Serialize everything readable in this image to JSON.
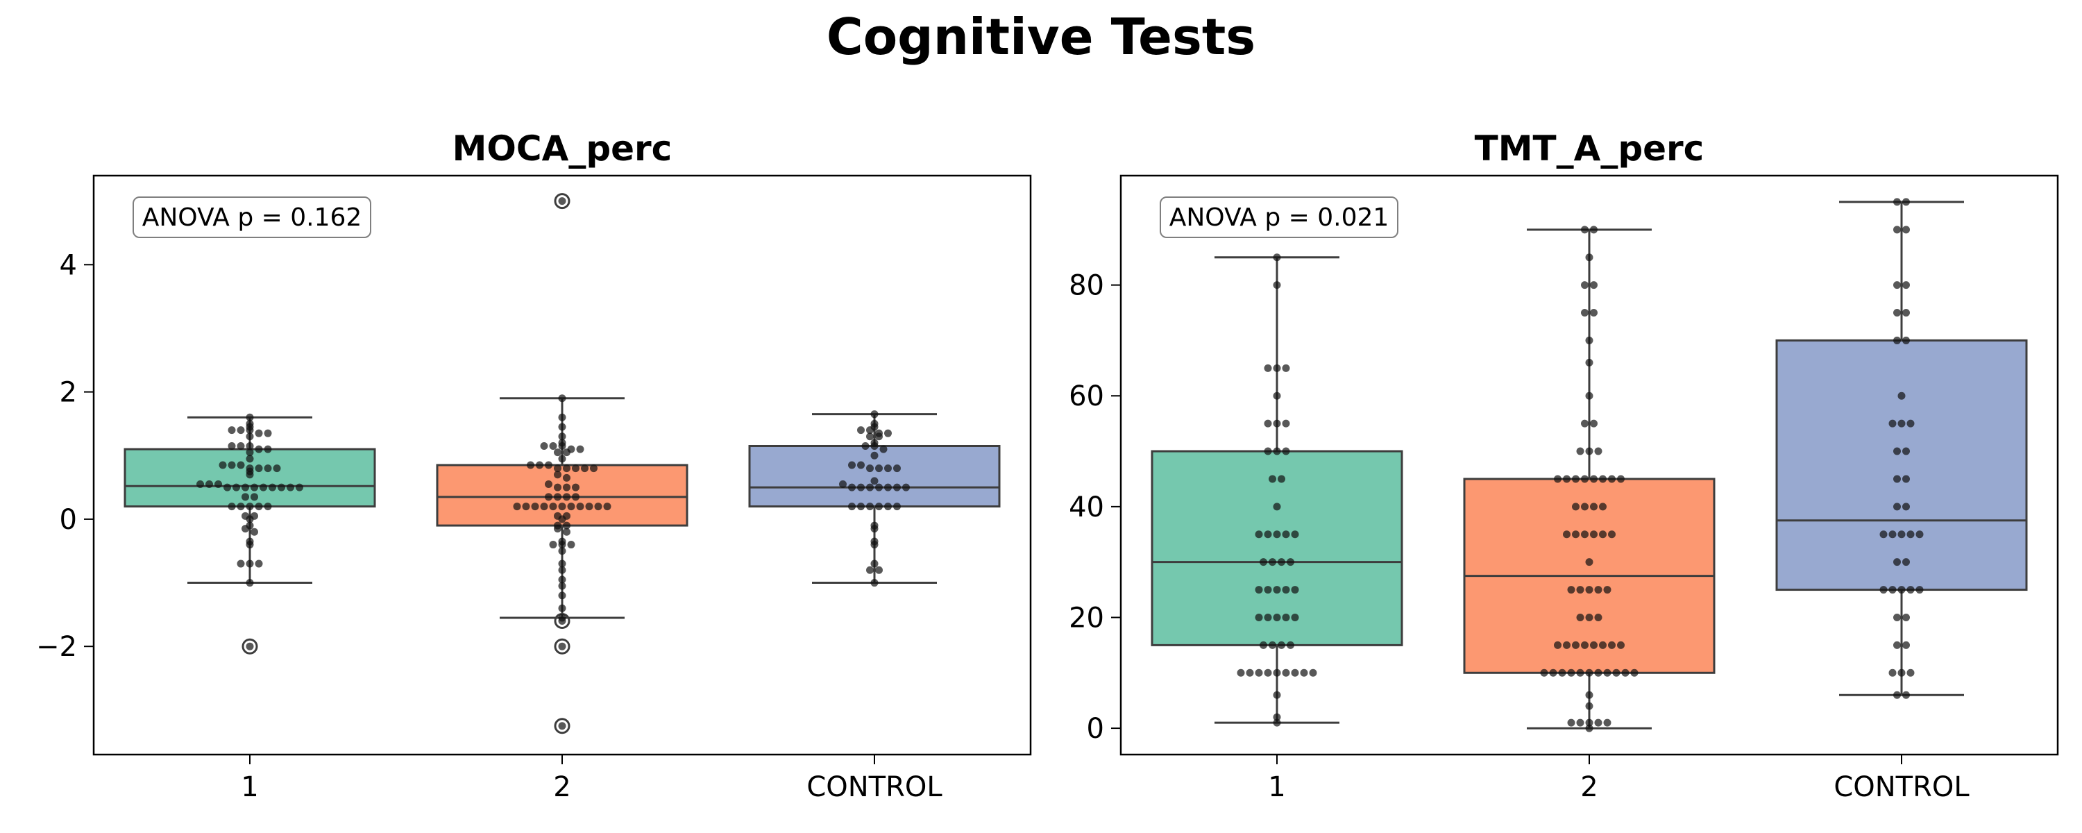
{
  "title": "Cognitive Tests",
  "chart_data": [
    {
      "type": "box",
      "title": "MOCA_perc",
      "annotation": "ANOVA p = 0.162",
      "categories": [
        "1",
        "2",
        "CONTROL"
      ],
      "yticks": [
        -2,
        0,
        2,
        4
      ],
      "ylim": [
        -3.7,
        5.4
      ],
      "grid": false,
      "colors": [
        "#66c2a5",
        "#fc8d62",
        "#8da0cb"
      ],
      "boxes": [
        {
          "q1": 0.2,
          "median": 0.52,
          "q3": 1.1,
          "whisker_low": -1.0,
          "whisker_high": 1.6,
          "outliers": [
            -2.0
          ]
        },
        {
          "q1": -0.1,
          "median": 0.35,
          "q3": 0.85,
          "whisker_low": -1.55,
          "whisker_high": 1.9,
          "outliers": [
            5.0,
            -1.6,
            -2.0,
            -3.25
          ]
        },
        {
          "q1": 0.2,
          "median": 0.5,
          "q3": 1.15,
          "whisker_low": -1.0,
          "whisker_high": 1.65,
          "outliers": []
        }
      ],
      "points": [
        [
          1.6,
          1.5,
          1.45,
          1.4,
          1.4,
          1.4,
          1.35,
          1.35,
          1.3,
          1.15,
          1.15,
          1.15,
          1.1,
          1.1,
          1.05,
          0.95,
          0.85,
          0.85,
          0.85,
          0.8,
          0.8,
          0.8,
          0.8,
          0.75,
          0.7,
          0.55,
          0.55,
          0.55,
          0.5,
          0.5,
          0.5,
          0.5,
          0.5,
          0.5,
          0.5,
          0.5,
          0.5,
          0.35,
          0.35,
          0.2,
          0.2,
          0.2,
          0.2,
          0.2,
          0.05,
          0.05,
          0.0,
          -0.1,
          -0.15,
          -0.2,
          -0.35,
          -0.4,
          -0.7,
          -0.7,
          -0.7,
          -1.0,
          -2.0
        ],
        [
          1.9,
          1.6,
          1.45,
          1.3,
          1.2,
          1.15,
          1.15,
          1.15,
          1.1,
          1.1,
          1.05,
          1.05,
          0.95,
          0.85,
          0.85,
          0.85,
          0.8,
          0.8,
          0.8,
          0.8,
          0.8,
          0.7,
          0.65,
          0.55,
          0.5,
          0.5,
          0.5,
          0.35,
          0.35,
          0.35,
          0.35,
          0.2,
          0.2,
          0.2,
          0.2,
          0.2,
          0.2,
          0.2,
          0.2,
          0.2,
          0.2,
          0.2,
          0.05,
          0.05,
          0.0,
          -0.1,
          -0.1,
          -0.15,
          -0.2,
          -0.35,
          -0.4,
          -0.4,
          -0.4,
          -0.5,
          -0.7,
          -0.8,
          -0.95,
          -1.05,
          -1.2,
          -1.4,
          -1.55,
          -1.6,
          -2.0,
          -3.25,
          5.0
        ],
        [
          1.65,
          1.5,
          1.45,
          1.4,
          1.4,
          1.35,
          1.35,
          1.3,
          1.3,
          1.2,
          1.15,
          1.15,
          1.1,
          1.0,
          0.85,
          0.85,
          0.8,
          0.8,
          0.8,
          0.8,
          0.6,
          0.55,
          0.5,
          0.5,
          0.5,
          0.5,
          0.5,
          0.5,
          0.5,
          0.2,
          0.2,
          0.2,
          0.2,
          0.2,
          0.2,
          -0.1,
          -0.15,
          -0.35,
          -0.4,
          -0.7,
          -0.8,
          -0.8,
          -1.0
        ]
      ]
    },
    {
      "type": "box",
      "title": "TMT_A_perc",
      "annotation": "ANOVA p = 0.021",
      "categories": [
        "1",
        "2",
        "CONTROL"
      ],
      "yticks": [
        0,
        20,
        40,
        60,
        80
      ],
      "ylim": [
        -4.75,
        99.75
      ],
      "grid": false,
      "colors": [
        "#66c2a5",
        "#fc8d62",
        "#8da0cb"
      ],
      "boxes": [
        {
          "q1": 15,
          "median": 30,
          "q3": 50,
          "whisker_low": 1,
          "whisker_high": 85,
          "outliers": []
        },
        {
          "q1": 10,
          "median": 27.5,
          "q3": 45,
          "whisker_low": 0,
          "whisker_high": 90,
          "outliers": []
        },
        {
          "q1": 25,
          "median": 37.5,
          "q3": 70,
          "whisker_low": 6,
          "whisker_high": 95,
          "outliers": []
        }
      ],
      "points": [
        [
          85,
          80,
          65,
          65,
          65,
          60,
          55,
          55,
          55,
          50,
          50,
          50,
          45,
          45,
          40,
          35,
          35,
          35,
          35,
          35,
          30,
          30,
          30,
          30,
          25,
          25,
          25,
          25,
          25,
          20,
          20,
          20,
          20,
          20,
          15,
          15,
          15,
          15,
          10,
          10,
          10,
          10,
          10,
          10,
          10,
          10,
          10,
          6,
          2,
          1
        ],
        [
          90,
          90,
          85,
          80,
          80,
          75,
          75,
          70,
          66,
          60,
          55,
          55,
          50,
          50,
          50,
          45,
          45,
          45,
          45,
          45,
          45,
          45,
          45,
          40,
          40,
          40,
          40,
          35,
          35,
          35,
          35,
          35,
          35,
          30,
          25,
          25,
          25,
          25,
          25,
          20,
          20,
          20,
          15,
          15,
          15,
          15,
          15,
          15,
          15,
          15,
          10,
          10,
          10,
          10,
          10,
          10,
          10,
          10,
          10,
          10,
          10,
          6,
          4,
          1,
          1,
          1,
          1,
          1,
          0
        ],
        [
          95,
          95,
          90,
          90,
          80,
          80,
          75,
          75,
          70,
          70,
          60,
          55,
          55,
          55,
          50,
          50,
          45,
          45,
          40,
          40,
          35,
          35,
          35,
          35,
          35,
          30,
          30,
          25,
          25,
          25,
          25,
          25,
          20,
          20,
          15,
          15,
          10,
          10,
          10,
          6,
          6
        ]
      ]
    }
  ]
}
